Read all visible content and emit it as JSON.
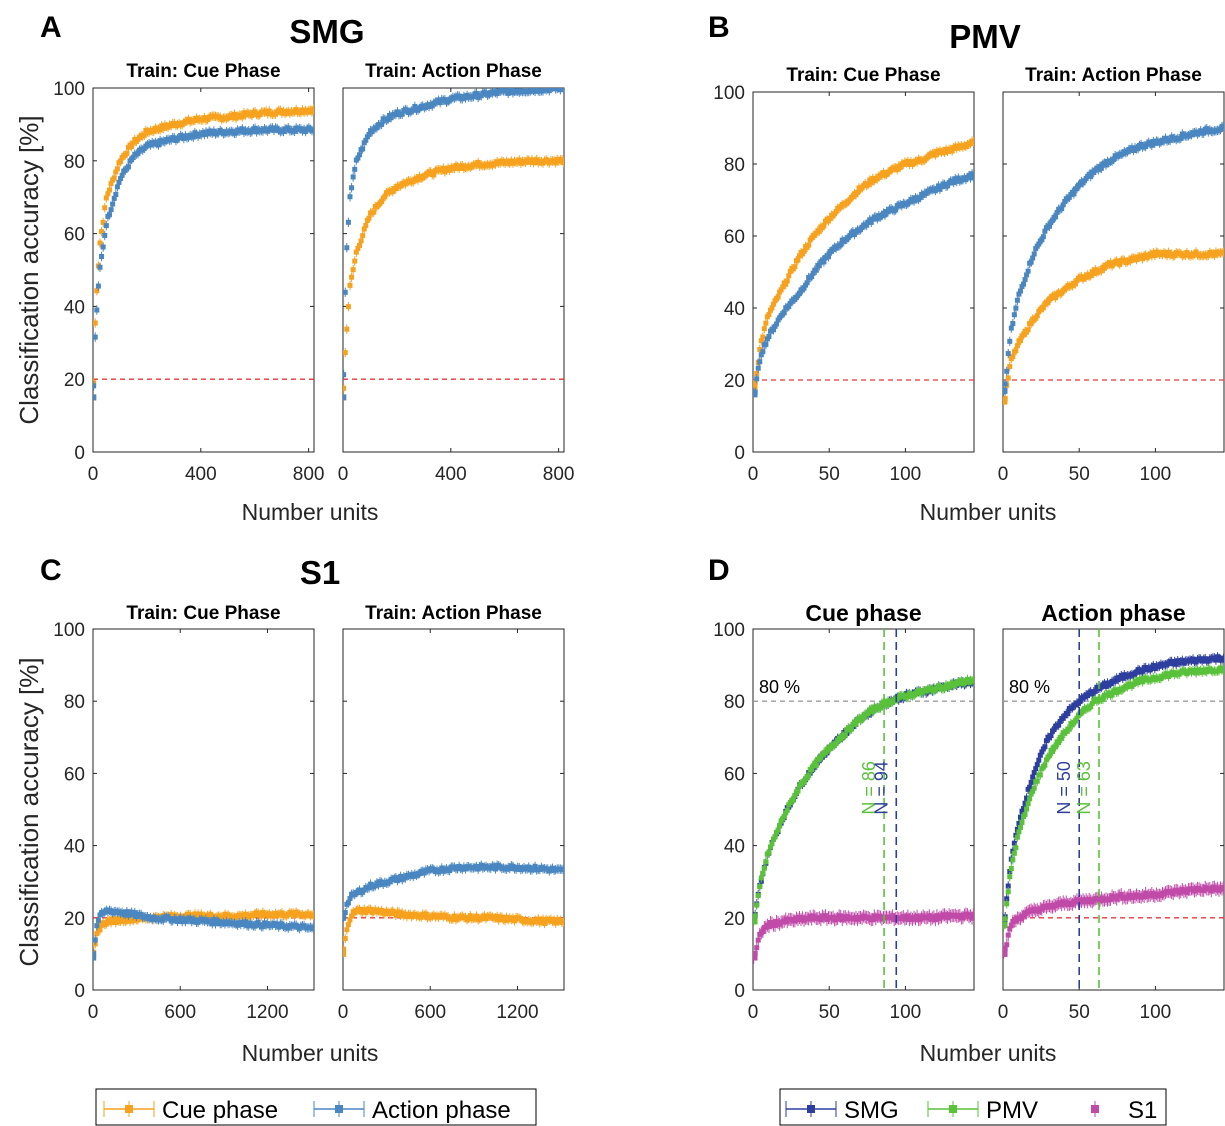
{
  "panels": [
    {
      "letter": "A",
      "title": "SMG",
      "ylabel": "Classification accuracy [%]",
      "xlabel": "Number units"
    },
    {
      "letter": "B",
      "title": "PMV",
      "ylabel": "",
      "xlabel": "Number units"
    },
    {
      "letter": "C",
      "title": "S1",
      "ylabel": "Classification accuracy [%]",
      "xlabel": "Number units"
    },
    {
      "letter": "D",
      "title": "",
      "ylabel": "",
      "xlabel": "Number units"
    }
  ],
  "legends": {
    "left": {
      "items": [
        {
          "label": "Cue phase",
          "color": "#f7a21e"
        },
        {
          "label": "Action phase",
          "color": "#4a86c0"
        }
      ]
    },
    "right": {
      "items": [
        {
          "label": "SMG",
          "color": "#2e3e9e"
        },
        {
          "label": "PMV",
          "color": "#59c13a"
        },
        {
          "label": "S1",
          "color": "#c04aa8"
        }
      ]
    }
  },
  "colors": {
    "cue": "#f7a21e",
    "action": "#4a86c0",
    "smg": "#2e3e9e",
    "pmv": "#59c13a",
    "s1": "#c04aa8",
    "chance": "#e8383b",
    "threshold": "#9e9e9e"
  },
  "chart_data": [
    {
      "type": "line",
      "panel": "A",
      "subtitle": "Train: Cue Phase",
      "xlim": [
        0,
        820
      ],
      "ylim": [
        0,
        100
      ],
      "xticks": [
        "0",
        "400",
        "800"
      ],
      "yticks": [
        "0",
        "20",
        "40",
        "60",
        "80",
        "100"
      ],
      "chance_level": 20,
      "series": [
        {
          "name": "Cue phase",
          "x": [
            1,
            10,
            25,
            50,
            100,
            150,
            200,
            300,
            400,
            500,
            600,
            700,
            820
          ],
          "values": [
            15,
            40,
            57,
            70,
            80,
            85,
            88,
            90,
            91.5,
            92,
            93,
            93.5,
            94
          ]
        },
        {
          "name": "Action phase",
          "x": [
            1,
            10,
            25,
            50,
            100,
            150,
            200,
            300,
            400,
            500,
            600,
            700,
            820
          ],
          "values": [
            15,
            35,
            50,
            63,
            75,
            81,
            84,
            86,
            87.5,
            88,
            88.5,
            88.5,
            88.5
          ]
        }
      ]
    },
    {
      "type": "line",
      "panel": "A",
      "subtitle": "Train: Action Phase",
      "xlim": [
        0,
        820
      ],
      "ylim": [
        0,
        100
      ],
      "xticks": [
        "0",
        "400",
        "800"
      ],
      "yticks": [
        "0",
        "20",
        "40",
        "60",
        "80",
        "100"
      ],
      "chance_level": 20,
      "series": [
        {
          "name": "Cue phase",
          "x": [
            1,
            10,
            25,
            50,
            100,
            150,
            200,
            300,
            400,
            500,
            600,
            700,
            820
          ],
          "values": [
            15,
            30,
            45,
            55,
            65,
            70,
            73,
            76,
            78,
            79,
            79.5,
            80,
            80
          ]
        },
        {
          "name": "Action phase",
          "x": [
            1,
            10,
            25,
            50,
            100,
            150,
            200,
            300,
            400,
            500,
            600,
            700,
            820
          ],
          "values": [
            15,
            50,
            70,
            80,
            88,
            91,
            93,
            95,
            97,
            98,
            99,
            99.5,
            100
          ]
        }
      ]
    },
    {
      "type": "line",
      "panel": "B",
      "subtitle": "Train: Cue Phase",
      "xlim": [
        0,
        145
      ],
      "ylim": [
        0,
        100
      ],
      "xticks": [
        "0",
        "50",
        "100"
      ],
      "yticks": [
        "0",
        "20",
        "40",
        "60",
        "80",
        "100"
      ],
      "chance_level": 20,
      "series": [
        {
          "name": "Cue phase",
          "x": [
            1,
            5,
            10,
            20,
            30,
            40,
            50,
            60,
            70,
            80,
            90,
            100,
            110,
            120,
            130,
            145
          ],
          "values": [
            18,
            30,
            38,
            46,
            54,
            60,
            65,
            69,
            73,
            76,
            78,
            80,
            81,
            83,
            84,
            86
          ]
        },
        {
          "name": "Action phase",
          "x": [
            1,
            5,
            10,
            20,
            30,
            40,
            50,
            60,
            70,
            80,
            90,
            100,
            110,
            120,
            130,
            145
          ],
          "values": [
            16,
            27,
            32,
            39,
            44,
            50,
            55,
            59,
            62,
            65,
            67,
            69,
            71,
            73,
            75,
            77
          ]
        }
      ]
    },
    {
      "type": "line",
      "panel": "B",
      "subtitle": "Train: Action Phase",
      "xlim": [
        0,
        145
      ],
      "ylim": [
        0,
        100
      ],
      "xticks": [
        "0",
        "50",
        "100"
      ],
      "yticks": [
        "0",
        "20",
        "40",
        "60",
        "80",
        "100"
      ],
      "chance_level": 20,
      "series": [
        {
          "name": "Cue phase",
          "x": [
            1,
            5,
            10,
            20,
            30,
            40,
            50,
            60,
            70,
            80,
            90,
            100,
            110,
            120,
            130,
            145
          ],
          "values": [
            14,
            25,
            30,
            37,
            42,
            45,
            48,
            50,
            52,
            53,
            54,
            55,
            55,
            55,
            55,
            55
          ]
        },
        {
          "name": "Action phase",
          "x": [
            1,
            5,
            10,
            20,
            30,
            40,
            50,
            60,
            70,
            80,
            90,
            100,
            110,
            120,
            130,
            145
          ],
          "values": [
            17,
            33,
            43,
            55,
            63,
            69,
            74,
            78,
            81,
            83,
            85,
            86,
            87,
            88,
            89,
            90
          ]
        }
      ]
    },
    {
      "type": "line",
      "panel": "C",
      "subtitle": "Train: Cue Phase",
      "xlim": [
        0,
        1520
      ],
      "ylim": [
        0,
        100
      ],
      "xticks": [
        "0",
        "600",
        "1200"
      ],
      "yticks": [
        "0",
        "20",
        "40",
        "60",
        "80",
        "100"
      ],
      "chance_level": 20,
      "series": [
        {
          "name": "Cue phase",
          "x": [
            1,
            30,
            60,
            100,
            200,
            400,
            600,
            800,
            1000,
            1200,
            1400,
            1520
          ],
          "values": [
            9,
            16,
            18,
            19,
            19.5,
            20,
            20.5,
            20.5,
            20.5,
            21,
            21,
            21
          ]
        },
        {
          "name": "Action phase",
          "x": [
            1,
            30,
            60,
            100,
            200,
            400,
            600,
            800,
            1000,
            1200,
            1400,
            1520
          ],
          "values": [
            9,
            19,
            21,
            22,
            21.5,
            20,
            19.5,
            19,
            18.5,
            18,
            17.5,
            17
          ]
        }
      ]
    },
    {
      "type": "line",
      "panel": "C",
      "subtitle": "Train: Action Phase",
      "xlim": [
        0,
        1520
      ],
      "ylim": [
        0,
        100
      ],
      "xticks": [
        "0",
        "600",
        "1200"
      ],
      "yticks": [
        "0",
        "20",
        "40",
        "60",
        "80",
        "100"
      ],
      "chance_level": 20,
      "series": [
        {
          "name": "Cue phase",
          "x": [
            1,
            30,
            60,
            100,
            200,
            400,
            600,
            800,
            1000,
            1200,
            1400,
            1520
          ],
          "values": [
            10,
            18,
            21,
            22,
            22,
            21,
            20.5,
            20,
            20,
            19.5,
            19,
            19
          ]
        },
        {
          "name": "Action phase",
          "x": [
            1,
            30,
            60,
            100,
            200,
            400,
            600,
            800,
            1000,
            1200,
            1400,
            1520
          ],
          "values": [
            20,
            24,
            26,
            27,
            29,
            31,
            33,
            34,
            34,
            34,
            33.5,
            33
          ]
        }
      ]
    },
    {
      "type": "line",
      "panel": "D",
      "subtitle": "Cue phase",
      "xlim": [
        0,
        145
      ],
      "ylim": [
        0,
        100
      ],
      "xticks": [
        "0",
        "50",
        "100"
      ],
      "yticks": [
        "0",
        "20",
        "40",
        "60",
        "80",
        "100"
      ],
      "chance_level": null,
      "threshold": 80,
      "threshold_label": "80 %",
      "markers": [
        {
          "x": 86,
          "label": "N = 86",
          "series": "PMV"
        },
        {
          "x": 94,
          "label": "N = 94",
          "series": "SMG"
        }
      ],
      "series": [
        {
          "name": "SMG",
          "x": [
            1,
            5,
            10,
            20,
            30,
            40,
            50,
            60,
            70,
            80,
            90,
            100,
            110,
            120,
            130,
            145
          ],
          "values": [
            20,
            30,
            38,
            48,
            56,
            62,
            67,
            71,
            75,
            78,
            80,
            81.5,
            82.5,
            83.5,
            84.5,
            85.5
          ]
        },
        {
          "name": "PMV",
          "x": [
            1,
            5,
            10,
            20,
            30,
            40,
            50,
            60,
            70,
            80,
            90,
            100,
            110,
            120,
            130,
            145
          ],
          "values": [
            19,
            30,
            38,
            48,
            56,
            62,
            67,
            71,
            75,
            78,
            80,
            81.5,
            82.5,
            83.5,
            84.5,
            86
          ]
        },
        {
          "name": "S1",
          "x": [
            1,
            5,
            10,
            20,
            30,
            40,
            50,
            60,
            70,
            80,
            90,
            100,
            110,
            120,
            130,
            145
          ],
          "values": [
            9,
            16,
            18,
            19,
            19.5,
            20,
            20,
            20,
            20,
            20,
            20,
            20,
            20,
            20,
            20.5,
            20.5
          ]
        }
      ]
    },
    {
      "type": "line",
      "panel": "D",
      "subtitle": "Action phase",
      "xlim": [
        0,
        145
      ],
      "ylim": [
        0,
        100
      ],
      "xticks": [
        "0",
        "50",
        "100"
      ],
      "yticks": [
        "0",
        "20",
        "40",
        "60",
        "80",
        "100"
      ],
      "chance_level": 20,
      "threshold": 80,
      "threshold_label": "80 %",
      "markers": [
        {
          "x": 50,
          "label": "N = 50",
          "series": "SMG"
        },
        {
          "x": 63,
          "label": "N = 63",
          "series": "PMV"
        }
      ],
      "series": [
        {
          "name": "SMG",
          "x": [
            1,
            5,
            10,
            20,
            30,
            40,
            50,
            60,
            70,
            80,
            90,
            100,
            110,
            120,
            130,
            145
          ],
          "values": [
            19,
            35,
            46,
            60,
            70,
            76,
            80,
            83,
            85,
            87,
            88.5,
            89.5,
            90.5,
            91,
            91.5,
            92
          ]
        },
        {
          "name": "PMV",
          "x": [
            1,
            5,
            10,
            20,
            30,
            40,
            50,
            60,
            70,
            80,
            90,
            100,
            110,
            120,
            130,
            145
          ],
          "values": [
            18,
            33,
            43,
            56,
            65,
            71,
            76,
            80,
            82,
            84,
            85.5,
            86.5,
            87.5,
            88,
            88.5,
            89
          ]
        },
        {
          "name": "S1",
          "x": [
            1,
            5,
            10,
            20,
            30,
            40,
            50,
            60,
            70,
            80,
            90,
            100,
            110,
            120,
            130,
            145
          ],
          "values": [
            10,
            18,
            20,
            22,
            23,
            24,
            24.5,
            25,
            25.5,
            26,
            26,
            26.5,
            27,
            27.5,
            28,
            28
          ]
        }
      ]
    }
  ]
}
